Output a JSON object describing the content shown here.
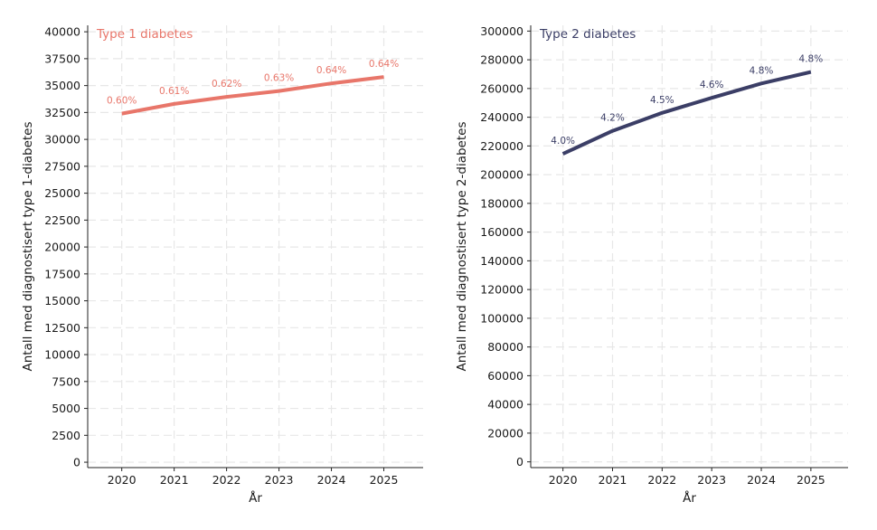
{
  "chart_data": [
    {
      "type": "line",
      "title": "Type 1 diabetes",
      "xlabel": "År",
      "ylabel": "Antall med diagnostisert type 1-diabetes",
      "x": [
        2020,
        2021,
        2022,
        2023,
        2024,
        2025
      ],
      "series": [
        {
          "values": [
            32400,
            33300,
            33950,
            34500,
            35200,
            35800
          ]
        }
      ],
      "point_labels": [
        "0.60%",
        "0.61%",
        "0.62%",
        "0.63%",
        "0.64%",
        "0.64%"
      ],
      "xlim": [
        2019.35,
        2025.75
      ],
      "ylim": [
        -500,
        40600
      ],
      "yticks": [
        0,
        2500,
        5000,
        7500,
        10000,
        12500,
        15000,
        17500,
        20000,
        22500,
        25000,
        27500,
        30000,
        32500,
        35000,
        37500,
        40000
      ],
      "grid": true,
      "color": "#e8766a"
    },
    {
      "type": "line",
      "title": "Type 2 diabetes",
      "xlabel": "År",
      "ylabel": "Antall med diagnostisert type 2-diabetes",
      "x": [
        2020,
        2021,
        2022,
        2023,
        2024,
        2025
      ],
      "series": [
        {
          "values": [
            214500,
            230500,
            243000,
            253500,
            263500,
            271500
          ]
        }
      ],
      "point_labels": [
        "4.0%",
        "4.2%",
        "4.5%",
        "4.6%",
        "4.8%",
        "4.8%"
      ],
      "xlim": [
        2019.35,
        2025.75
      ],
      "ylim": [
        -4000,
        304000
      ],
      "yticks": [
        0,
        20000,
        40000,
        60000,
        80000,
        100000,
        120000,
        140000,
        160000,
        180000,
        200000,
        220000,
        240000,
        260000,
        280000,
        300000
      ],
      "grid": true,
      "color": "#3b3e66"
    }
  ]
}
